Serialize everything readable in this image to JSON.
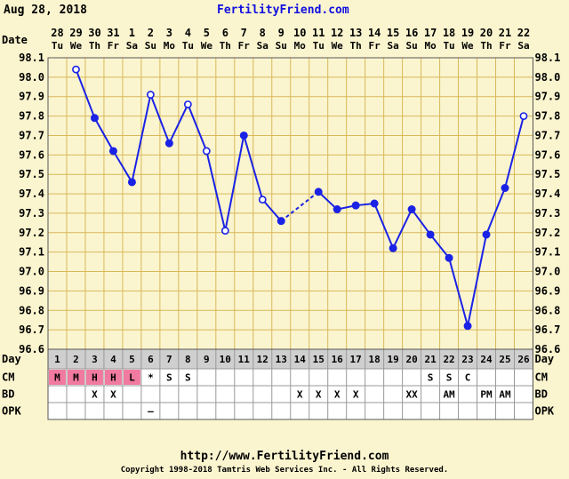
{
  "header": {
    "date": "Aug 28, 2018",
    "site": "FertilityFriend.com"
  },
  "footer": {
    "url": "http://www.FertilityFriend.com",
    "copyright": "Copyright 1998-2018 Tamtris Web Services Inc. - All Rights Reserved."
  },
  "chart_data": {
    "type": "line",
    "row_labels": {
      "date": "Date",
      "day": "Day",
      "cm": "CM",
      "bd": "BD",
      "opk": "OPK"
    },
    "dates": [
      "28",
      "29",
      "30",
      "31",
      "1",
      "2",
      "3",
      "4",
      "5",
      "6",
      "7",
      "8",
      "9",
      "10",
      "11",
      "12",
      "13",
      "14",
      "15",
      "16",
      "17",
      "18",
      "19",
      "20",
      "21",
      "22"
    ],
    "weekdays": [
      "Tu",
      "We",
      "Th",
      "Fr",
      "Sa",
      "Su",
      "Mo",
      "Tu",
      "We",
      "Th",
      "Fr",
      "Sa",
      "Su",
      "Mo",
      "Tu",
      "We",
      "Th",
      "Fr",
      "Sa",
      "Su",
      "Mo",
      "Tu",
      "We",
      "Th",
      "Fr",
      "Sa"
    ],
    "cycle_days": [
      "1",
      "2",
      "3",
      "4",
      "5",
      "6",
      "7",
      "8",
      "9",
      "10",
      "11",
      "12",
      "13",
      "14",
      "15",
      "16",
      "17",
      "18",
      "19",
      "20",
      "21",
      "22",
      "23",
      "24",
      "25",
      "26"
    ],
    "temperatures": [
      null,
      98.04,
      97.79,
      97.62,
      97.46,
      97.91,
      97.66,
      97.86,
      97.62,
      97.21,
      97.7,
      97.37,
      97.26,
      null,
      97.41,
      97.32,
      97.34,
      97.35,
      97.12,
      97.32,
      97.19,
      97.07,
      96.72,
      97.19,
      97.43,
      97.8
    ],
    "open_markers": [
      2,
      6,
      8,
      9,
      10,
      12,
      26
    ],
    "dashed_segments": [
      [
        13,
        15
      ]
    ],
    "y_ticks": [
      "98.1",
      "98.0",
      "97.9",
      "97.8",
      "97.7",
      "97.6",
      "97.5",
      "97.4",
      "97.3",
      "97.2",
      "97.1",
      "97.0",
      "96.9",
      "96.8",
      "96.7",
      "96.6"
    ],
    "ylim": [
      96.6,
      98.1
    ],
    "cm": [
      "M",
      "M",
      "H",
      "H",
      "L",
      "*",
      "S",
      "S",
      "",
      "",
      "",
      "",
      "",
      "",
      "",
      "",
      "",
      "",
      "",
      "",
      "S",
      "S",
      "C",
      "",
      "",
      ""
    ],
    "bd": [
      "",
      "",
      "X",
      "X",
      "",
      "",
      "",
      "",
      "",
      "",
      "",
      "",
      "",
      "X",
      "X",
      "X",
      "X",
      "",
      "",
      "XX",
      "",
      "AM",
      "",
      "PM",
      "AM",
      ""
    ],
    "opk": [
      "",
      "",
      "",
      "",
      "",
      "—",
      "",
      "",
      "",
      "",
      "",
      "",
      "",
      "",
      "",
      "",
      "",
      "",
      "",
      "",
      "",
      "",
      "",
      "",
      "",
      ""
    ],
    "colors": {
      "background": "#fbf5cf",
      "grid": "#d8b85a",
      "line": "#1a22e6",
      "menses": "#f07aa0",
      "site_link": "#1010e0"
    }
  }
}
